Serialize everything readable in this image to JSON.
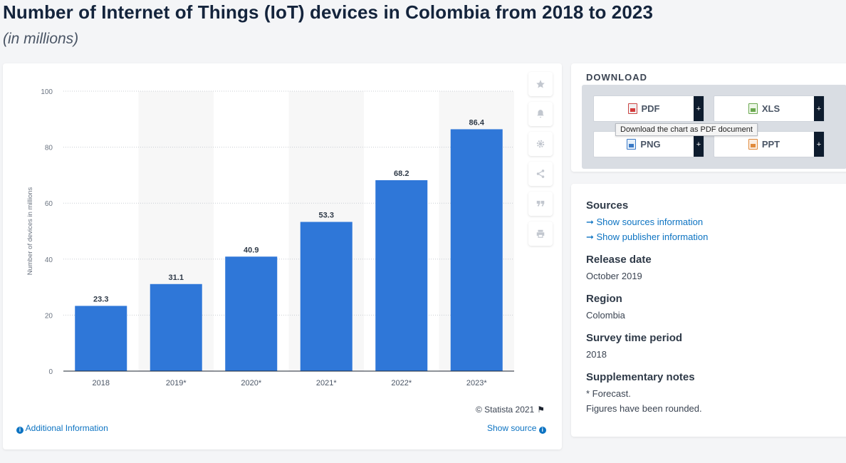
{
  "header": {
    "title": "Number of Internet of Things (IoT) devices in Colombia from 2018 to 2023",
    "subtitle": "(in millions)"
  },
  "chart_data": {
    "type": "bar",
    "categories": [
      "2018",
      "2019*",
      "2020*",
      "2021*",
      "2022*",
      "2023*"
    ],
    "values": [
      23.3,
      31.1,
      40.9,
      53.3,
      68.2,
      86.4
    ],
    "value_labels": [
      "23.3",
      "31.1",
      "40.9",
      "53.3",
      "68.2",
      "86.4"
    ],
    "ylabel": "Number of devices in millions",
    "yticks": [
      "0",
      "20",
      "40",
      "60",
      "80",
      "100"
    ],
    "ylim": [
      0,
      100
    ],
    "bar_color": "#2f77d8",
    "grid": true
  },
  "chart_footer": {
    "copyright": "© Statista 2021",
    "additional_info": "Additional Information",
    "show_source": "Show source"
  },
  "side_tools": [
    "star-icon",
    "bell-icon",
    "gear-icon",
    "share-icon",
    "quote-icon",
    "print-icon"
  ],
  "download": {
    "heading": "DOWNLOAD",
    "buttons": {
      "pdf": "PDF",
      "xls": "XLS",
      "png": "PNG",
      "ppt": "PPT",
      "plus": "+"
    },
    "tooltip": "Download the chart as PDF document"
  },
  "info": {
    "sources_heading": "Sources",
    "show_sources": "Show sources information",
    "show_publisher": "Show publisher information",
    "release_heading": "Release date",
    "release_value": "October 2019",
    "region_heading": "Region",
    "region_value": "Colombia",
    "survey_heading": "Survey time period",
    "survey_value": "2018",
    "notes_heading": "Supplementary notes",
    "notes_line1": "* Forecast.",
    "notes_line2": "Figures have been rounded."
  }
}
